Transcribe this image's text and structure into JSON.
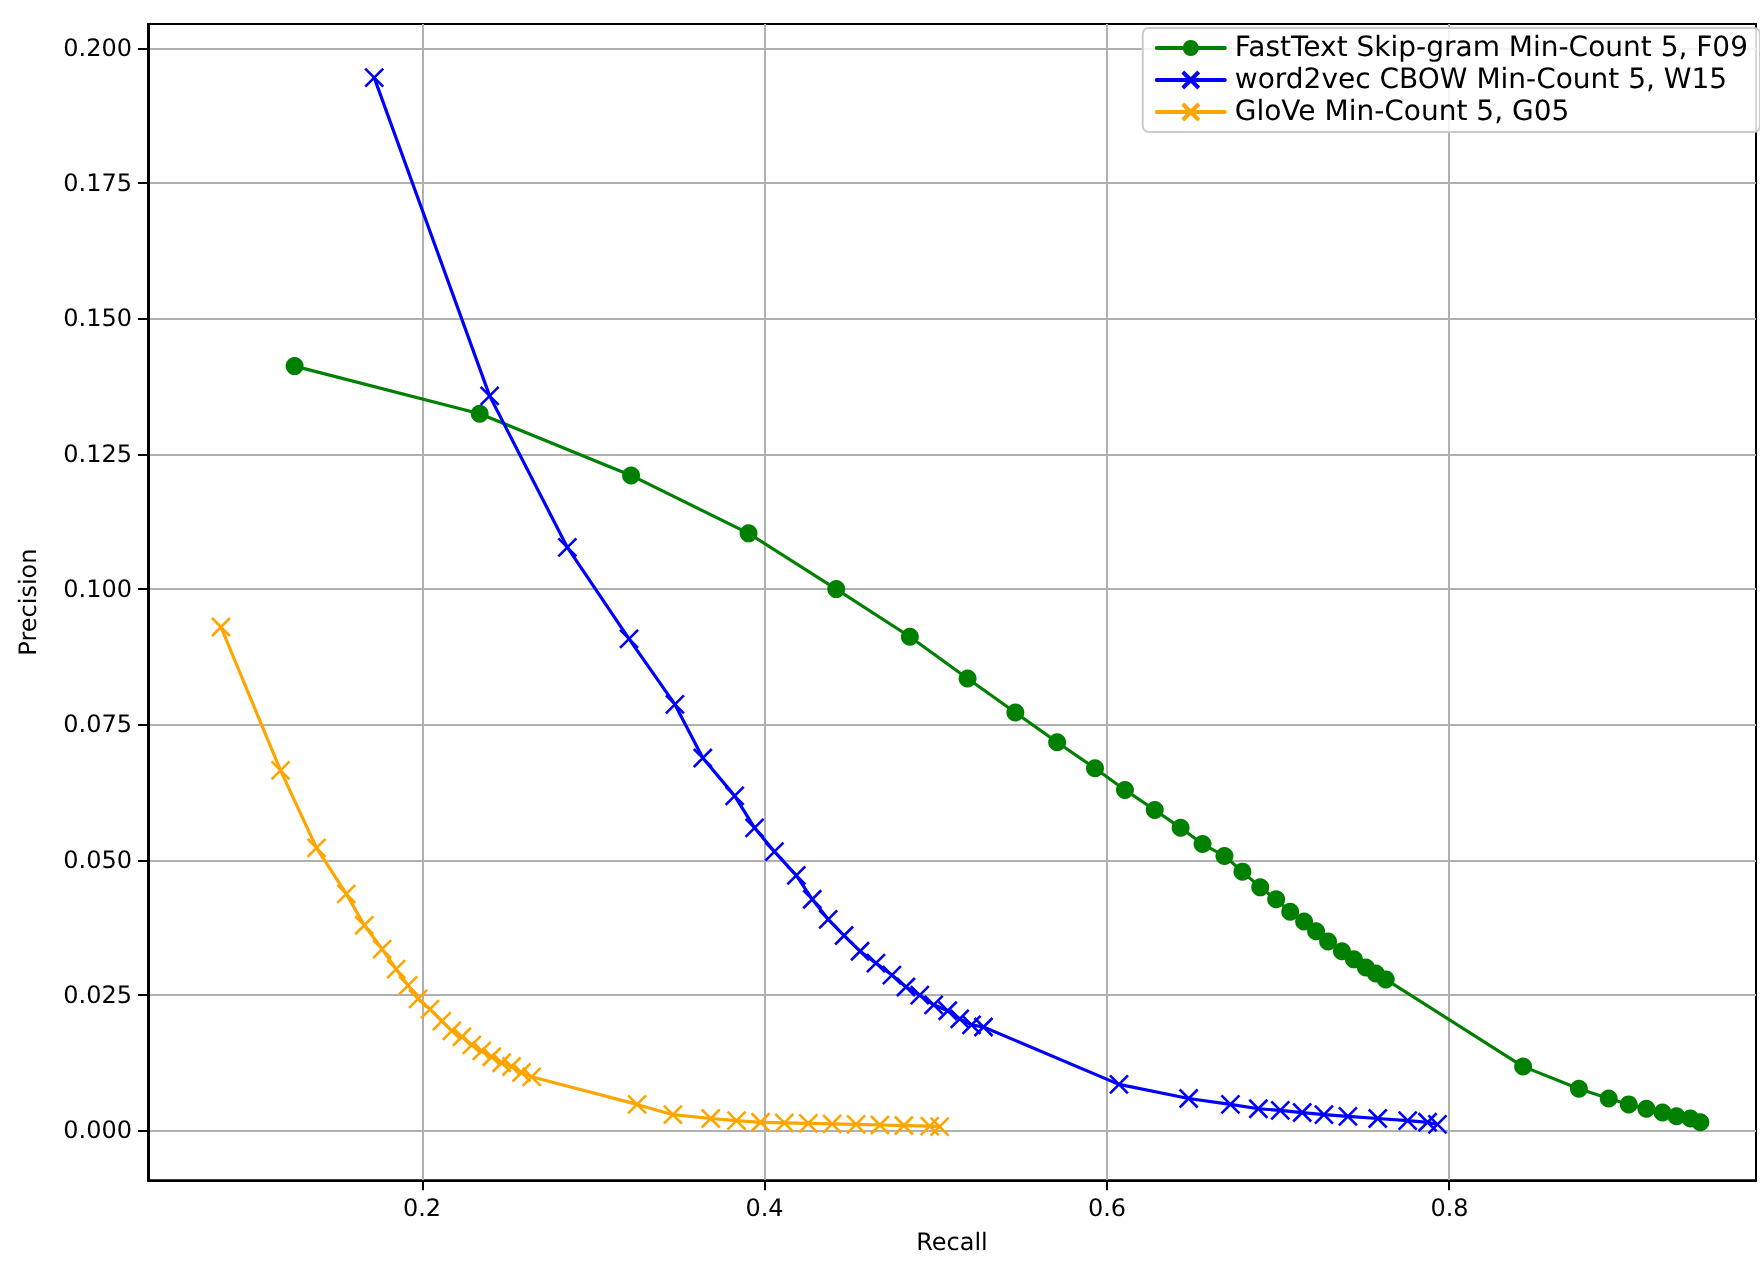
{
  "chart_data": {
    "type": "line",
    "xlabel": "Recall",
    "ylabel": "Precision",
    "xlim": [
      0.04,
      0.979
    ],
    "ylim": [
      -0.0092,
      0.2044
    ],
    "xticks": [
      0.2,
      0.4,
      0.6,
      0.8
    ],
    "yticks": [
      {
        "value": 0,
        "label": "0.000"
      },
      {
        "value": 0.025,
        "label": "0.025"
      },
      {
        "value": 0.05,
        "label": "0.050"
      },
      {
        "value": 0.075,
        "label": "0.075"
      },
      {
        "value": 0.1,
        "label": "0.100"
      },
      {
        "value": 0.125,
        "label": "0.125"
      },
      {
        "value": 0.15,
        "label": "0.150"
      },
      {
        "value": 0.175,
        "label": "0.175"
      },
      {
        "value": 0.2,
        "label": "0.200"
      }
    ],
    "grid": true,
    "legend": "top right",
    "line_style": "solid",
    "series": [
      {
        "name": "FastText Skip-gram Min-Count 5, F09",
        "color": "#008000",
        "marker": "circle",
        "x": [
          0.1256,
          0.2337,
          0.3221,
          0.3907,
          0.4419,
          0.4849,
          0.5186,
          0.5465,
          0.5709,
          0.593,
          0.6105,
          0.6279,
          0.643,
          0.6558,
          0.6686,
          0.6791,
          0.6895,
          0.6988,
          0.707,
          0.7151,
          0.7221,
          0.7291,
          0.7372,
          0.7442,
          0.7512,
          0.757,
          0.7628,
          0.843,
          0.8756,
          0.893,
          0.9047,
          0.915,
          0.9244,
          0.9326,
          0.9407,
          0.9465
        ],
        "values": [
          0.1412,
          0.1324,
          0.121,
          0.1103,
          0.1,
          0.0912,
          0.0835,
          0.0772,
          0.0717,
          0.0669,
          0.0629,
          0.0592,
          0.0559,
          0.0529,
          0.0507,
          0.0478,
          0.0449,
          0.0427,
          0.0404,
          0.0386,
          0.0368,
          0.0349,
          0.0331,
          0.0316,
          0.0301,
          0.029,
          0.0279,
          0.0118,
          0.0077,
          0.0059,
          0.0048,
          0.004,
          0.0033,
          0.0026,
          0.0022,
          0.0015
        ]
      },
      {
        "name": "word2vec CBOW Min-Count 5, W15",
        "color": "#0000ff",
        "marker": "cross",
        "x": [
          0.1721,
          0.2395,
          0.2849,
          0.3209,
          0.3477,
          0.364,
          0.3826,
          0.3942,
          0.4058,
          0.4186,
          0.4279,
          0.4372,
          0.4465,
          0.4558,
          0.4651,
          0.4744,
          0.4826,
          0.4907,
          0.4988,
          0.507,
          0.514,
          0.5209,
          0.5279,
          0.607,
          0.6477,
          0.6721,
          0.6884,
          0.7012,
          0.714,
          0.7267,
          0.7407,
          0.7581,
          0.7756,
          0.7872,
          0.793
        ],
        "values": [
          0.1945,
          0.1357,
          0.1077,
          0.0908,
          0.0787,
          0.0688,
          0.0618,
          0.0559,
          0.0515,
          0.0471,
          0.0427,
          0.039,
          0.036,
          0.0331,
          0.0309,
          0.0287,
          0.0265,
          0.025,
          0.0232,
          0.0221,
          0.0206,
          0.0195,
          0.0191,
          0.0085,
          0.0059,
          0.0048,
          0.004,
          0.0037,
          0.0033,
          0.0029,
          0.0026,
          0.0022,
          0.0018,
          0.0015,
          0.0011
        ]
      },
      {
        "name": "GloVe Min-Count 5, G05",
        "color": "#ffa500",
        "marker": "cross",
        "x": [
          0.0826,
          0.1174,
          0.1384,
          0.1558,
          0.1663,
          0.1767,
          0.1849,
          0.1919,
          0.1977,
          0.2047,
          0.2116,
          0.2174,
          0.2233,
          0.2291,
          0.2349,
          0.2407,
          0.2465,
          0.2523,
          0.2581,
          0.264,
          0.3256,
          0.3465,
          0.3686,
          0.3837,
          0.3977,
          0.4116,
          0.4256,
          0.4395,
          0.4535,
          0.4674,
          0.4814,
          0.4965,
          0.5023
        ],
        "values": [
          0.093,
          0.0665,
          0.0522,
          0.0437,
          0.0379,
          0.0335,
          0.0298,
          0.0268,
          0.0243,
          0.0224,
          0.0202,
          0.0184,
          0.0173,
          0.0158,
          0.0147,
          0.0136,
          0.0125,
          0.0118,
          0.0107,
          0.0099,
          0.0048,
          0.0029,
          0.0022,
          0.0018,
          0.0015,
          0.0014,
          0.0013,
          0.0012,
          0.0011,
          0.001,
          0.0009,
          0.0008,
          0.0007
        ]
      }
    ]
  }
}
